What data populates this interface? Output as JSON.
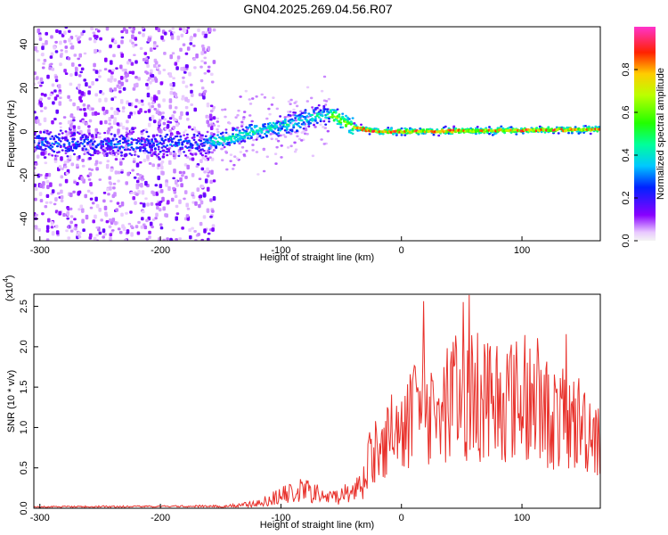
{
  "title": "GN04.2025.269.04.56.R07",
  "chart_data": [
    {
      "type": "heatmap",
      "name": "spectrogram",
      "xlabel": "Height of straight line (km)",
      "ylabel": "Frequency (Hz)",
      "xlim": [
        -305,
        165
      ],
      "ylim": [
        -50,
        48
      ],
      "xticks": [
        -300,
        -200,
        -100,
        0,
        100
      ],
      "yticks": [
        -40,
        -20,
        0,
        20,
        40
      ],
      "ridge": [
        {
          "x": -305,
          "y": -5
        },
        {
          "x": -200,
          "y": -6
        },
        {
          "x": -160,
          "y": -5
        },
        {
          "x": -120,
          "y": 0
        },
        {
          "x": -90,
          "y": 4
        },
        {
          "x": -65,
          "y": 8
        },
        {
          "x": -55,
          "y": 7
        },
        {
          "x": -40,
          "y": 2
        },
        {
          "x": -20,
          "y": 0
        },
        {
          "x": 0,
          "y": 0
        },
        {
          "x": 165,
          "y": 1
        }
      ],
      "colorbar": {
        "label": "Normalized spectral amplitude",
        "range": [
          0,
          1
        ],
        "ticks": [
          "0.0",
          "0.2",
          "0.4",
          "0.6",
          "0.8"
        ]
      }
    },
    {
      "type": "line",
      "name": "snr",
      "xlabel": "Height of straight line (km)",
      "ylabel": "SNR (10 * v/v)",
      "multiplier": "(x10",
      "multiplier_exp": "4",
      "multiplier_close": ")",
      "color": "#e8302a",
      "xlim": [
        -305,
        165
      ],
      "ylim": [
        0,
        2.65
      ],
      "xticks": [
        -300,
        -200,
        -100,
        0,
        100
      ],
      "yticks": [
        "0.0",
        "0.5",
        "1.0",
        "1.5",
        "2.0",
        "2.5"
      ],
      "envelope": [
        {
          "x": -305,
          "y": 0.02
        },
        {
          "x": -150,
          "y": 0.03
        },
        {
          "x": -120,
          "y": 0.08
        },
        {
          "x": -100,
          "y": 0.22
        },
        {
          "x": -80,
          "y": 0.32
        },
        {
          "x": -60,
          "y": 0.18
        },
        {
          "x": -40,
          "y": 0.3
        },
        {
          "x": -25,
          "y": 0.75
        },
        {
          "x": -10,
          "y": 1.05
        },
        {
          "x": 10,
          "y": 1.3
        },
        {
          "x": 30,
          "y": 1.45
        },
        {
          "x": 50,
          "y": 1.6
        },
        {
          "x": 70,
          "y": 1.62
        },
        {
          "x": 90,
          "y": 1.55
        },
        {
          "x": 110,
          "y": 1.45
        },
        {
          "x": 130,
          "y": 1.25
        },
        {
          "x": 150,
          "y": 1.2
        },
        {
          "x": 165,
          "y": 1.05
        }
      ]
    }
  ]
}
